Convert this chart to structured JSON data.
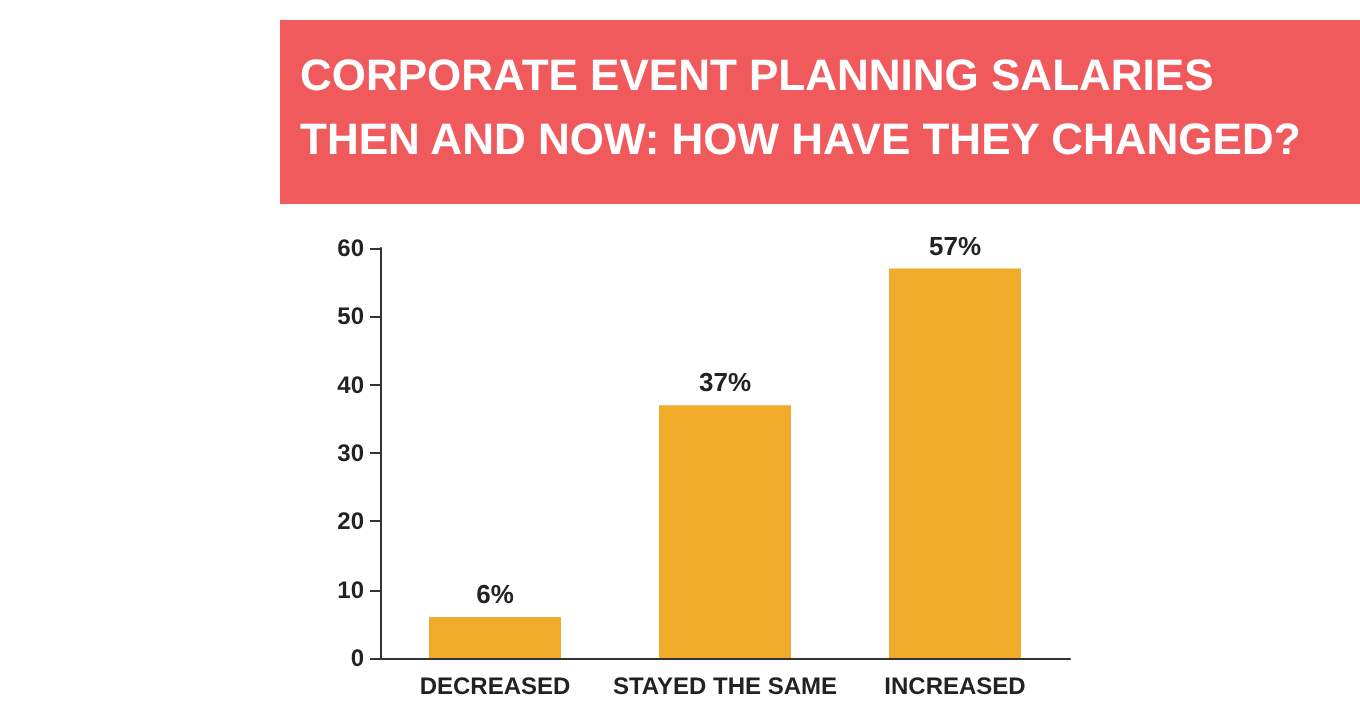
{
  "chart_data": {
    "type": "bar",
    "title": "CORPORATE EVENT PLANNING SALARIES THEN AND NOW: HOW HAVE THEY CHANGED?",
    "categories": [
      "DECREASED",
      "STAYED THE SAME",
      "INCREASED"
    ],
    "values": [
      6,
      37,
      57
    ],
    "value_labels": [
      "6%",
      "37%",
      "57%"
    ],
    "color": "#f0ab2b",
    "ylim": [
      0,
      60
    ],
    "yticks": [
      0,
      10,
      20,
      30,
      40,
      50,
      60
    ],
    "grid": false
  }
}
